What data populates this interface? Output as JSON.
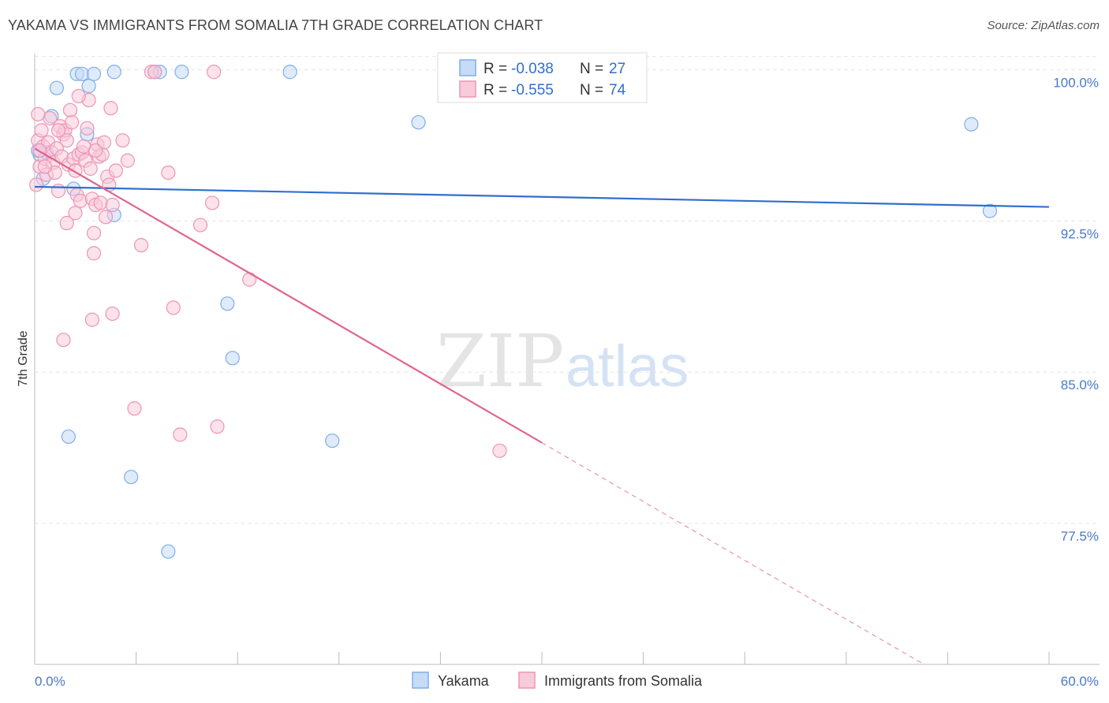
{
  "header": {
    "title": "YAKAMA VS IMMIGRANTS FROM SOMALIA 7TH GRADE CORRELATION CHART",
    "source": "Source: ZipAtlas.com"
  },
  "watermark": {
    "zip": "ZIP",
    "atlas": "atlas"
  },
  "chart_data": {
    "type": "scatter",
    "title": "YAKAMA VS IMMIGRANTS FROM SOMALIA 7TH GRADE CORRELATION CHART",
    "xlabel": "",
    "ylabel": "7th Grade",
    "xlim": [
      0,
      60
    ],
    "ylim": [
      70.5,
      101.2
    ],
    "x_tick_labels": [
      "0.0%",
      "60.0%"
    ],
    "y_ticks": [
      77.5,
      85.0,
      92.5,
      100.0
    ],
    "y_tick_labels": [
      "77.5%",
      "85.0%",
      "92.5%",
      "100.0%"
    ],
    "grid": true,
    "legend_stats": [
      {
        "r_label": "R = ",
        "r_value": "-0.038",
        "n_label": "N = ",
        "n_value": "27"
      },
      {
        "r_label": "R = ",
        "r_value": "-0.555",
        "n_label": "N = ",
        "n_value": "74"
      }
    ],
    "series": [
      {
        "name": "Yakama",
        "color": "#7eaee8",
        "fill": "#c5dbf6",
        "line_color": "#2f6fce",
        "trend": {
          "x": [
            0,
            60
          ],
          "y": [
            94.2,
            93.2
          ],
          "dashed_from": null
        },
        "points": [
          [
            0.3,
            95.8
          ],
          [
            0.5,
            94.6
          ],
          [
            0.7,
            95.9
          ],
          [
            1.0,
            97.7
          ],
          [
            1.3,
            99.1
          ],
          [
            2.0,
            81.8
          ],
          [
            2.3,
            94.1
          ],
          [
            2.5,
            99.8
          ],
          [
            2.8,
            99.8
          ],
          [
            3.1,
            96.8
          ],
          [
            3.2,
            99.2
          ],
          [
            3.5,
            99.8
          ],
          [
            4.7,
            99.9
          ],
          [
            4.7,
            92.8
          ],
          [
            5.7,
            79.8
          ],
          [
            7.1,
            99.9
          ],
          [
            7.4,
            99.9
          ],
          [
            7.9,
            76.1
          ],
          [
            8.7,
            99.9
          ],
          [
            11.4,
            88.4
          ],
          [
            11.7,
            85.7
          ],
          [
            15.1,
            99.9
          ],
          [
            17.6,
            81.6
          ],
          [
            22.7,
            97.4
          ],
          [
            55.4,
            97.3
          ],
          [
            56.5,
            93.0
          ],
          [
            0.2,
            96.0
          ]
        ]
      },
      {
        "name": "Immigrants from Somalia",
        "color": "#ee94b3",
        "fill": "#f8cbdb",
        "line_color": "#e0658f",
        "trend": {
          "x": [
            0,
            60
          ],
          "y": [
            96.1,
            66.9
          ],
          "solid_until_x": 30.0
        },
        "points": [
          [
            0.1,
            94.3
          ],
          [
            0.2,
            96.5
          ],
          [
            0.3,
            95.2
          ],
          [
            0.4,
            97.0
          ],
          [
            0.5,
            96.2
          ],
          [
            0.6,
            95.6
          ],
          [
            0.7,
            94.8
          ],
          [
            0.8,
            96.4
          ],
          [
            0.9,
            97.6
          ],
          [
            1.0,
            95.9
          ],
          [
            1.1,
            95.4
          ],
          [
            1.2,
            94.9
          ],
          [
            1.3,
            96.1
          ],
          [
            1.4,
            94.0
          ],
          [
            1.5,
            97.2
          ],
          [
            1.6,
            95.7
          ],
          [
            1.7,
            96.8
          ],
          [
            1.8,
            97.0
          ],
          [
            1.9,
            96.5
          ],
          [
            2.0,
            95.3
          ],
          [
            2.1,
            98.0
          ],
          [
            2.2,
            97.4
          ],
          [
            2.3,
            95.6
          ],
          [
            2.4,
            95.0
          ],
          [
            2.5,
            93.8
          ],
          [
            2.6,
            95.8
          ],
          [
            2.7,
            93.5
          ],
          [
            2.8,
            95.9
          ],
          [
            2.9,
            96.2
          ],
          [
            3.0,
            95.5
          ],
          [
            3.1,
            97.1
          ],
          [
            3.2,
            98.5
          ],
          [
            3.3,
            95.1
          ],
          [
            3.4,
            93.6
          ],
          [
            3.5,
            91.9
          ],
          [
            3.6,
            93.3
          ],
          [
            3.7,
            96.3
          ],
          [
            3.8,
            95.7
          ],
          [
            3.9,
            93.4
          ],
          [
            4.0,
            95.8
          ],
          [
            4.1,
            96.4
          ],
          [
            4.2,
            92.7
          ],
          [
            4.3,
            94.7
          ],
          [
            4.4,
            94.3
          ],
          [
            4.5,
            98.1
          ],
          [
            4.6,
            93.3
          ],
          [
            1.9,
            92.4
          ],
          [
            2.6,
            98.7
          ],
          [
            0.2,
            97.8
          ],
          [
            4.8,
            95.0
          ],
          [
            5.2,
            96.5
          ],
          [
            5.5,
            95.5
          ],
          [
            3.4,
            87.6
          ],
          [
            3.5,
            90.9
          ],
          [
            4.6,
            87.9
          ],
          [
            1.7,
            86.6
          ],
          [
            5.9,
            83.2
          ],
          [
            6.3,
            91.3
          ],
          [
            7.9,
            94.9
          ],
          [
            8.2,
            88.2
          ],
          [
            8.6,
            81.9
          ],
          [
            9.8,
            92.3
          ],
          [
            10.5,
            93.4
          ],
          [
            10.8,
            82.3
          ],
          [
            12.7,
            89.6
          ],
          [
            10.6,
            99.9
          ],
          [
            6.9,
            99.9
          ],
          [
            7.1,
            99.9
          ],
          [
            27.5,
            81.1
          ],
          [
            0.3,
            96.0
          ],
          [
            0.6,
            95.2
          ],
          [
            1.4,
            97.0
          ],
          [
            2.4,
            92.9
          ],
          [
            3.6,
            96.0
          ]
        ]
      }
    ]
  },
  "bottom_legend": {
    "items": [
      {
        "label": "Yakama"
      },
      {
        "label": "Immigrants from Somalia"
      }
    ]
  }
}
